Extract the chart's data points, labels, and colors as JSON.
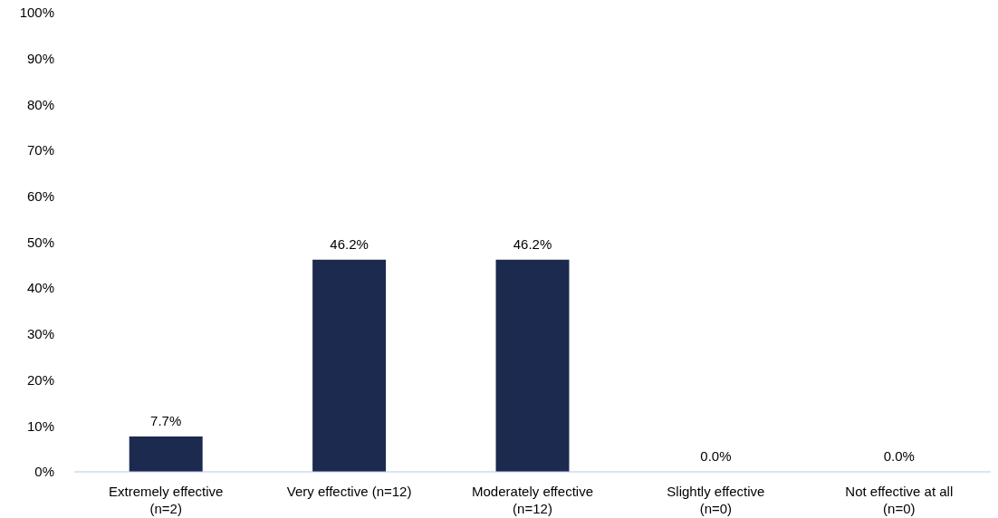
{
  "chart_data": {
    "type": "bar",
    "categories": [
      "Extremely effective\n(n=2)",
      "Very effective (n=12)",
      "Moderately effective\n(n=12)",
      "Slightly effective\n(n=0)",
      "Not effective at all\n(n=0)"
    ],
    "values": [
      7.7,
      46.2,
      46.2,
      0,
      0
    ],
    "color": "#1b2a4e",
    "value_labels": [
      "7.7%",
      "46.2%",
      "46.2%",
      "0.0%",
      "0.0%"
    ],
    "ylim": [
      0,
      100
    ],
    "yticks": [
      {
        "value": 0,
        "label": "0%"
      },
      {
        "value": 10,
        "label": "10%"
      },
      {
        "value": 20,
        "label": "20%"
      },
      {
        "value": 30,
        "label": "30%"
      },
      {
        "value": 40,
        "label": "40%"
      },
      {
        "value": 50,
        "label": "50%"
      },
      {
        "value": 60,
        "label": "60%"
      },
      {
        "value": 70,
        "label": "70%"
      },
      {
        "value": 80,
        "label": "80%"
      },
      {
        "value": 90,
        "label": "90%"
      },
      {
        "value": 100,
        "label": "100%"
      }
    ],
    "grid": false
  }
}
